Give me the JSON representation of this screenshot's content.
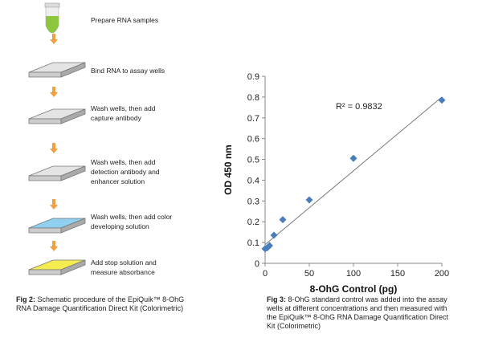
{
  "figure2": {
    "steps": [
      {
        "lines": [
          "Prepare RNA samples"
        ]
      },
      {
        "lines": [
          "Bind RNA to assay wells"
        ]
      },
      {
        "lines": [
          "Wash wells, then add",
          "capture antibody"
        ]
      },
      {
        "lines": [
          "Wash wells, then add",
          "detection antibody and",
          "enhancer solution"
        ]
      },
      {
        "lines": [
          "Wash wells, then add color",
          "developing solution"
        ]
      },
      {
        "lines": [
          "Add stop solution and",
          "measure absorbance"
        ]
      }
    ],
    "caption": {
      "label": "Fig 2:",
      "lines": [
        " Schematic procedure of the EpiQuik™ 8-OhG",
        "RNA Damage Quantification Direct Kit (Colorimetric)"
      ]
    }
  },
  "figure3": {
    "caption": {
      "label": "Fig 3:",
      "lines": [
        " 8-OhG standard control was added into the assay",
        "wells at different concentrations and then measured with",
        "the EpiQuik™ 8-OhG RNA Damage Quantification Direct",
        "Kit (Colorimetric)"
      ]
    }
  },
  "chart_data": {
    "type": "scatter",
    "x_label": "8-OhG Control (pg)",
    "y_label": "OD 450 nm",
    "annotation": "R² = 0.9832",
    "series": [
      {
        "color": "#4a7ebb",
        "x": [
          0,
          2.5,
          5,
          10,
          20,
          50,
          100,
          200
        ],
        "values": [
          0.07,
          0.075,
          0.085,
          0.135,
          0.21,
          0.305,
          0.505,
          0.785
        ]
      }
    ],
    "trendline": {
      "color": "#777777",
      "x": [
        0,
        200
      ],
      "values": [
        0.09,
        0.8
      ]
    },
    "xlim": [
      0,
      200
    ],
    "xticks": [
      0,
      50,
      100,
      150,
      200
    ],
    "ylim": [
      0,
      0.9
    ],
    "yticks": [
      0,
      0.1,
      0.2,
      0.3,
      0.4,
      0.5,
      0.6,
      0.7,
      0.8,
      0.9
    ]
  }
}
